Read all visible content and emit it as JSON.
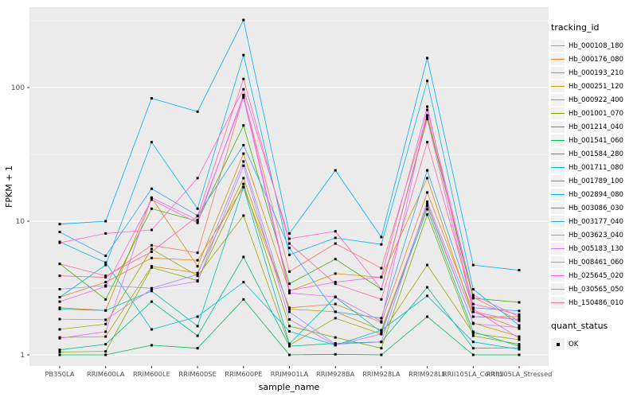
{
  "chart_data": {
    "type": "line",
    "title": "",
    "xlabel": "sample_name",
    "ylabel": "FPKM + 1",
    "y_scale": "log10",
    "y_ticks": [
      "1",
      "10",
      "100"
    ],
    "y_tick_values": [
      1,
      10,
      100
    ],
    "grid": true,
    "panel_bg": "#EBEBEB",
    "grid_color": "#FFFFFF",
    "axis_text_color": "#4D4D4D",
    "point_color": "#000000",
    "legend_title": "tracking_id",
    "legend2_title": "quant_status",
    "legend2_items": [
      {
        "label": "OK",
        "marker": "square",
        "color": "#000000"
      }
    ],
    "categories": [
      "PB350LA",
      "RRIM600LA",
      "RRIM600LE",
      "RRIM600SE",
      "RRIM600PE",
      "RRIM901LA",
      "RRIM928BA",
      "RRIM928LA",
      "RRIM928LE",
      "RRII105LA_Control",
      "RRII105LA_Stressed"
    ],
    "series": [
      {
        "name": "Hb_000108_180",
        "color": "#F8766D",
        "values": [
          3.9,
          3.8,
          6.6,
          5.8,
          86,
          4.2,
          6.8,
          4.45,
          62,
          2.7,
          1.8
        ]
      },
      {
        "name": "Hb_000176_080",
        "color": "#EA8331",
        "values": [
          2.7,
          3.5,
          5.3,
          5.1,
          18,
          2.25,
          2.4,
          1.75,
          16.4,
          2.1,
          1.57
        ]
      },
      {
        "name": "Hb_000193_210",
        "color": "#D89000",
        "values": [
          2.25,
          2.15,
          15,
          4.6,
          32,
          3.0,
          4.05,
          3.8,
          21,
          1.93,
          1.93
        ]
      },
      {
        "name": "Hb_000251_120",
        "color": "#C09B00",
        "values": [
          1.35,
          1.37,
          4.6,
          4.1,
          21,
          2.2,
          2.1,
          1.53,
          13,
          1.73,
          1.37
        ]
      },
      {
        "name": "Hb_000922_400",
        "color": "#A3A500",
        "values": [
          1.55,
          1.7,
          6.2,
          3.9,
          11,
          1.18,
          1.88,
          1.43,
          4.7,
          1.45,
          1.3
        ]
      },
      {
        "name": "Hb_001001_070",
        "color": "#7CAE00",
        "values": [
          1.05,
          1.06,
          4.5,
          3.6,
          19,
          1.64,
          1.35,
          1.12,
          11.2,
          1.39,
          1.2
        ]
      },
      {
        "name": "Hb_001214_040",
        "color": "#39B600",
        "values": [
          4.8,
          2.6,
          12.4,
          10,
          52,
          3.4,
          5.2,
          3.1,
          60,
          2.65,
          2.47
        ]
      },
      {
        "name": "Hb_001541_060",
        "color": "#00BB4E",
        "values": [
          1.0,
          1.0,
          1.18,
          1.12,
          2.6,
          1.0,
          1.01,
          1.0,
          1.93,
          1.0,
          1.0
        ]
      },
      {
        "name": "Hb_001584_280",
        "color": "#00C087",
        "values": [
          1.09,
          1.2,
          2.5,
          1.39,
          5.4,
          1.16,
          1.22,
          1.25,
          3.2,
          1.12,
          1.13
        ]
      },
      {
        "name": "Hb_001711_080",
        "color": "#00C0B2",
        "values": [
          2.2,
          2.15,
          3.0,
          1.64,
          18,
          1.21,
          2.7,
          1.48,
          12.3,
          1.49,
          1.16
        ]
      },
      {
        "name": "Hb_001789_100",
        "color": "#00BFD3",
        "values": [
          7.0,
          4.9,
          1.55,
          1.93,
          3.5,
          1.5,
          1.18,
          1.53,
          2.76,
          1.25,
          1.1
        ]
      },
      {
        "name": "Hb_002894_080",
        "color": "#00B8E5",
        "values": [
          2.7,
          4.7,
          39,
          12.4,
          175,
          5.6,
          7.5,
          6.7,
          112,
          3.1,
          1.66
        ]
      },
      {
        "name": "Hb_003086_030",
        "color": "#00ACFC",
        "values": [
          9.5,
          10,
          83,
          66,
          320,
          8.1,
          24,
          7.6,
          166,
          4.7,
          4.3
        ]
      },
      {
        "name": "Hb_003177_040",
        "color": "#35A2FF",
        "values": [
          8.3,
          5.5,
          17.5,
          11,
          37,
          6.3,
          2.1,
          1.88,
          24,
          2.25,
          2.13
        ]
      },
      {
        "name": "Hb_003623_040",
        "color": "#9590FF",
        "values": [
          3.1,
          3.3,
          3.15,
          4.0,
          28,
          2.1,
          1.2,
          1.25,
          14,
          1.93,
          1.85
        ]
      },
      {
        "name": "Hb_005183_130",
        "color": "#C77CFF",
        "values": [
          1.85,
          1.83,
          3.1,
          3.55,
          26,
          1.84,
          1.18,
          1.43,
          13.5,
          1.71,
          1.6
        ]
      },
      {
        "name": "Hb_008461_060",
        "color": "#E76BF3",
        "values": [
          1.33,
          1.49,
          15,
          10.2,
          84,
          2.9,
          2.72,
          1.78,
          68,
          2.8,
          1.93
        ]
      },
      {
        "name": "Hb_025645_020",
        "color": "#FA62DB",
        "values": [
          2.5,
          3.25,
          14.5,
          9.7,
          88,
          3.03,
          3.5,
          3.83,
          72,
          2.2,
          1.33
        ]
      },
      {
        "name": "Hb_030565_050",
        "color": "#FF61C9",
        "values": [
          6.9,
          8.1,
          8.6,
          21,
          97,
          7.4,
          8.4,
          3.1,
          58,
          2.1,
          1.8
        ]
      },
      {
        "name": "Hb_150486_010",
        "color": "#FF67A4",
        "values": [
          4.8,
          3.9,
          5.9,
          10.9,
          116,
          6.8,
          3.4,
          2.6,
          39,
          2.4,
          2.0
        ]
      }
    ]
  }
}
